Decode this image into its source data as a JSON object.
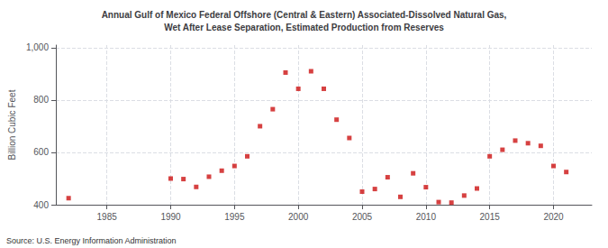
{
  "chart_data": {
    "type": "scatter",
    "title": "Annual Gulf of Mexico Federal Offshore (Central & Eastern) Associated-Dissolved Natural Gas,\nWet After Lease Separation, Estimated Production from Reserves",
    "ylabel": "Billion Cubic Feet",
    "annotation": "Source: U.S. Energy Information Administration",
    "x": [
      1982,
      1990,
      1991,
      1992,
      1993,
      1994,
      1995,
      1996,
      1997,
      1998,
      1999,
      2000,
      2001,
      2002,
      2003,
      2004,
      2005,
      2006,
      2007,
      2008,
      2009,
      2010,
      2011,
      2012,
      2013,
      2014,
      2015,
      2016,
      2017,
      2018,
      2019,
      2020,
      2021
    ],
    "values": [
      425,
      500,
      498,
      468,
      507,
      530,
      548,
      585,
      700,
      765,
      905,
      843,
      910,
      843,
      725,
      655,
      450,
      460,
      505,
      430,
      520,
      467,
      410,
      408,
      435,
      462,
      585,
      610,
      645,
      635,
      625,
      548,
      525
    ],
    "color": "#cc1111",
    "marker": "square",
    "xlim": [
      1981,
      2023
    ],
    "xticks": [
      1985,
      1990,
      1995,
      2000,
      2005,
      2010,
      2015,
      2020
    ],
    "ylim": [
      400,
      1010
    ],
    "yticks": [
      400,
      600,
      800,
      {
        "value": 1000,
        "label": "1,000"
      }
    ],
    "grid": true
  }
}
